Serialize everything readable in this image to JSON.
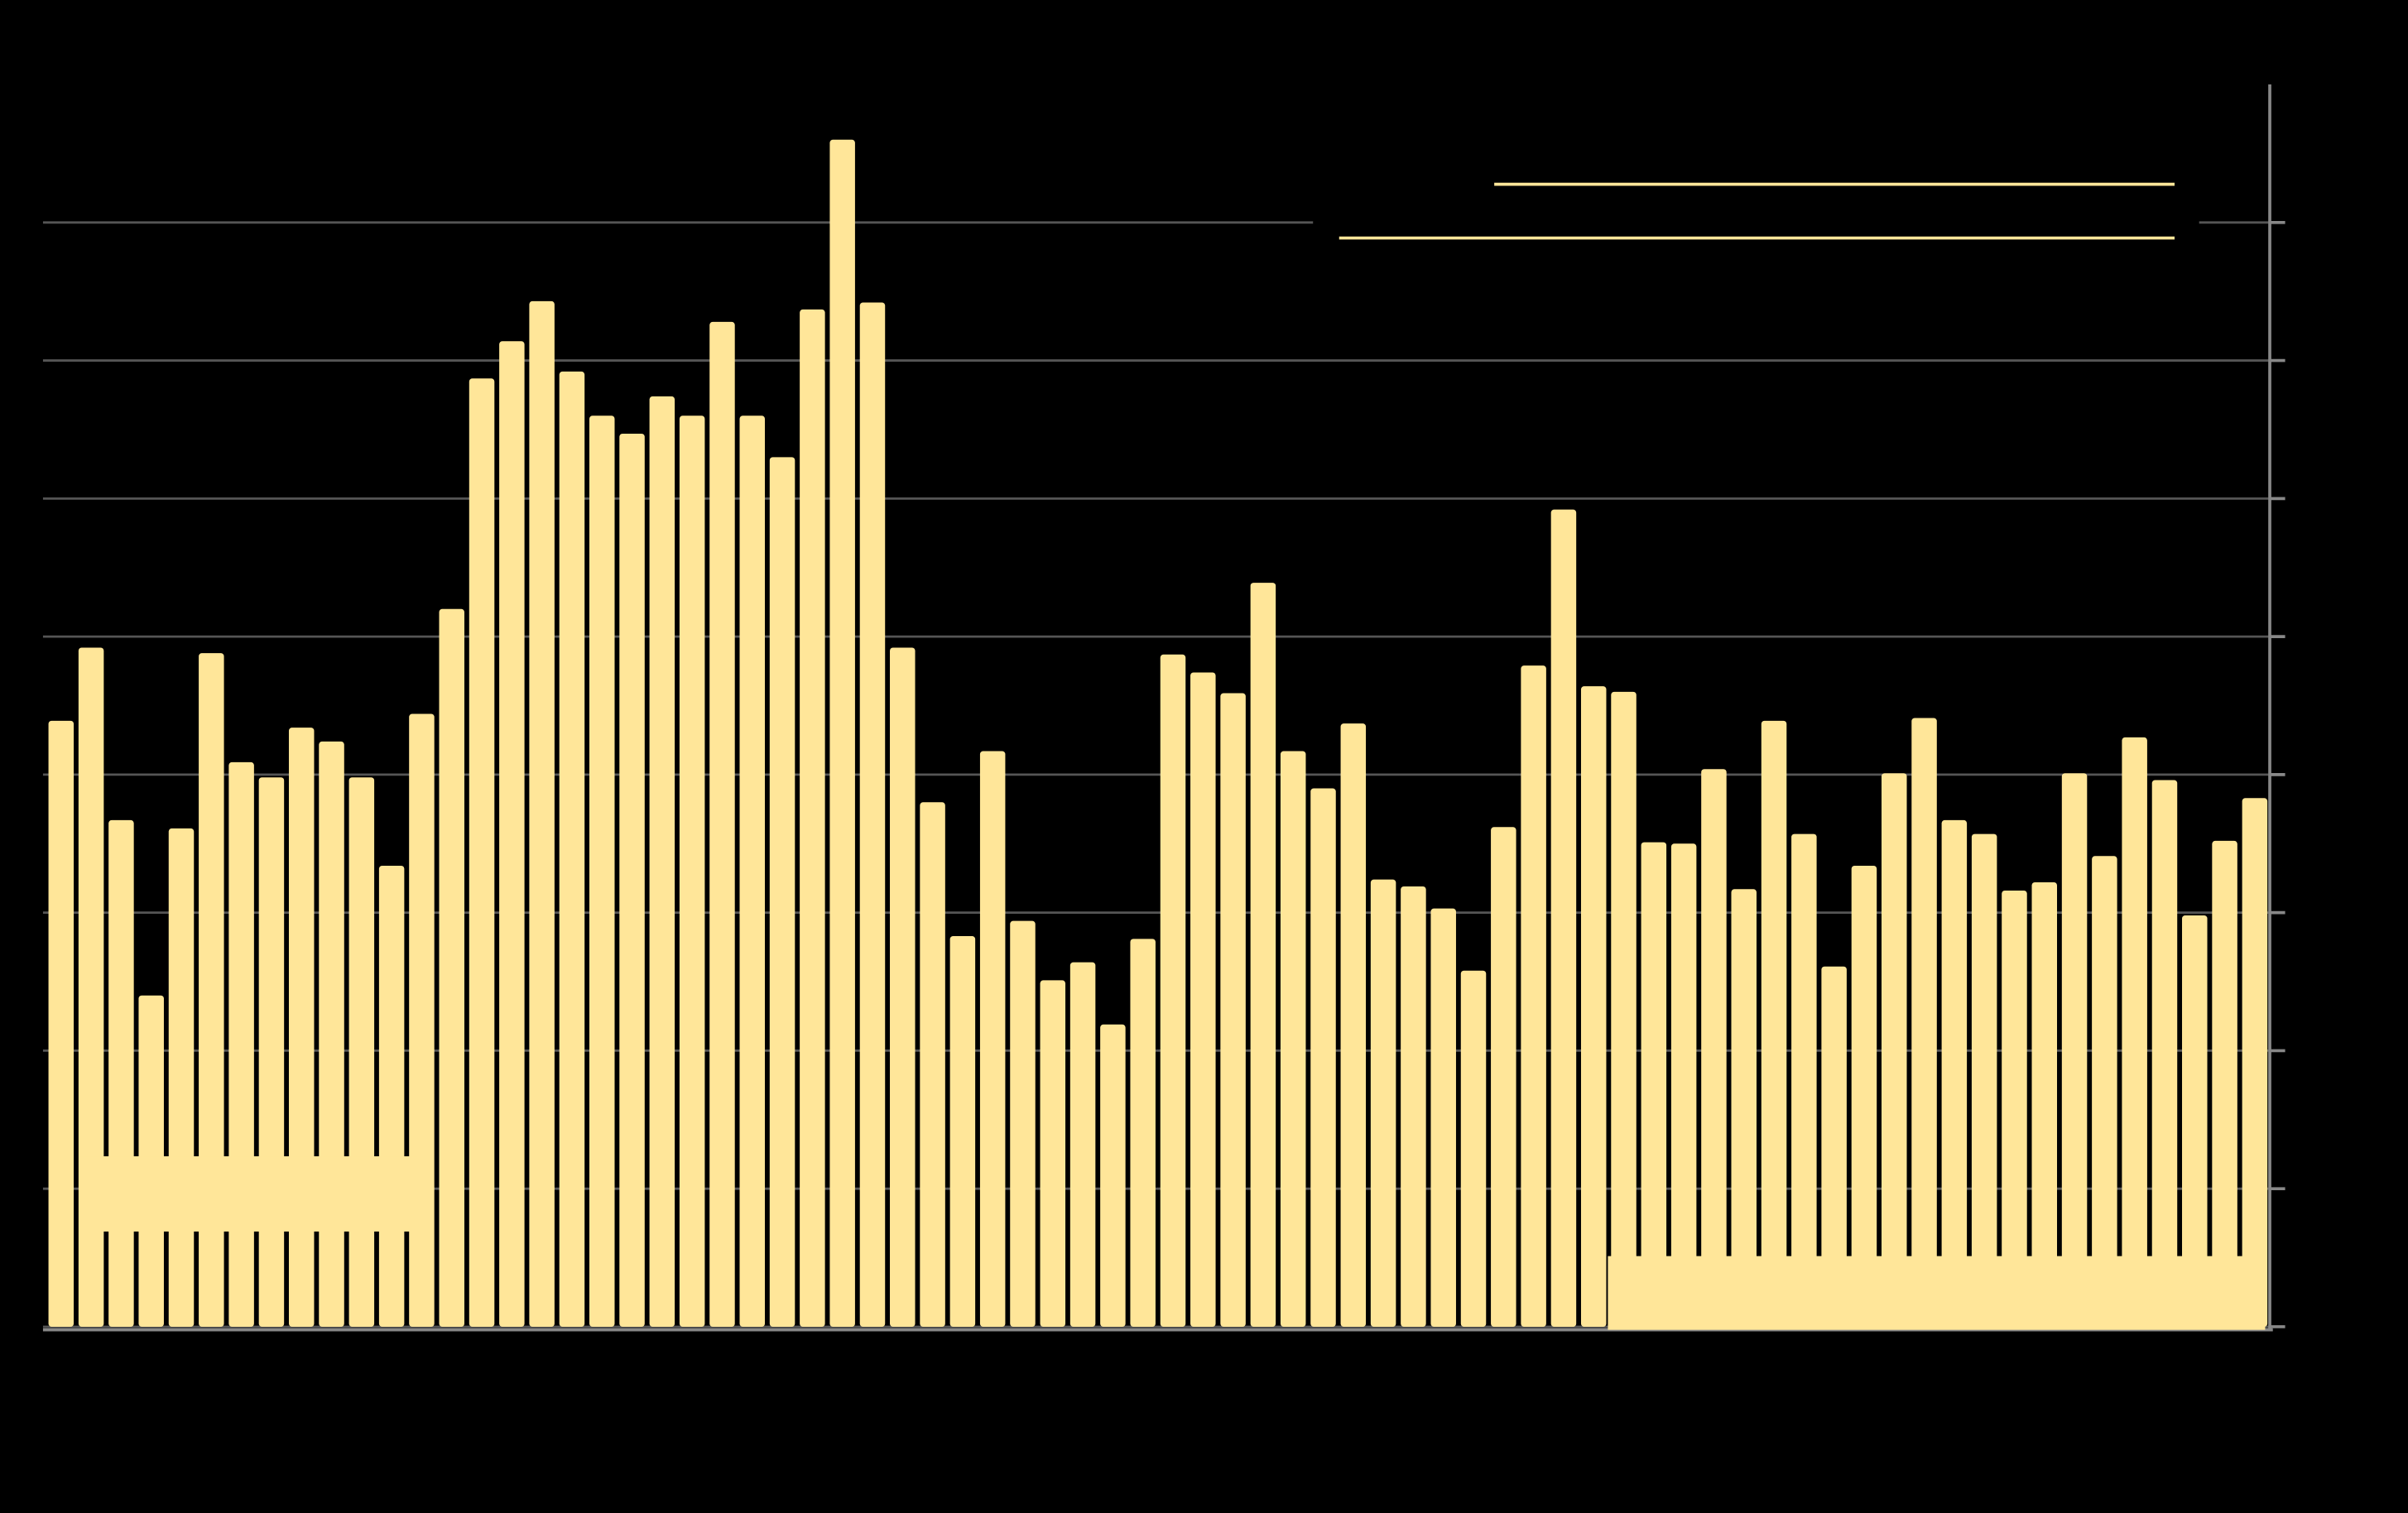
{
  "chart_data": {
    "type": "bar",
    "color": "#ffe699",
    "grid": true,
    "ylim": [
      0,
      9
    ],
    "yticks": [
      0,
      1,
      2,
      3,
      4,
      5,
      6,
      7,
      8
    ],
    "values": [
      4.39,
      4.92,
      3.67,
      2.4,
      3.61,
      4.88,
      4.09,
      3.98,
      4.34,
      4.24,
      3.98,
      3.34,
      4.44,
      5.2,
      6.87,
      7.14,
      7.43,
      6.92,
      6.6,
      6.47,
      6.74,
      6.6,
      7.28,
      6.6,
      6.3,
      7.37,
      8.6,
      7.42,
      4.92,
      3.8,
      2.83,
      4.17,
      2.94,
      2.51,
      2.64,
      2.19,
      2.81,
      4.87,
      4.74,
      4.59,
      5.39,
      4.17,
      3.9,
      4.37,
      3.24,
      3.19,
      3.03,
      2.58,
      3.62,
      4.79,
      5.92,
      4.64,
      4.6,
      3.51,
      3.5,
      4.04,
      3.17,
      4.39,
      3.57,
      2.61,
      3.34,
      4.01,
      4.41,
      3.67,
      3.57,
      3.16,
      3.22,
      4.01,
      3.41,
      4.27,
      3.96,
      2.98,
      3.52,
      3.83
    ]
  }
}
